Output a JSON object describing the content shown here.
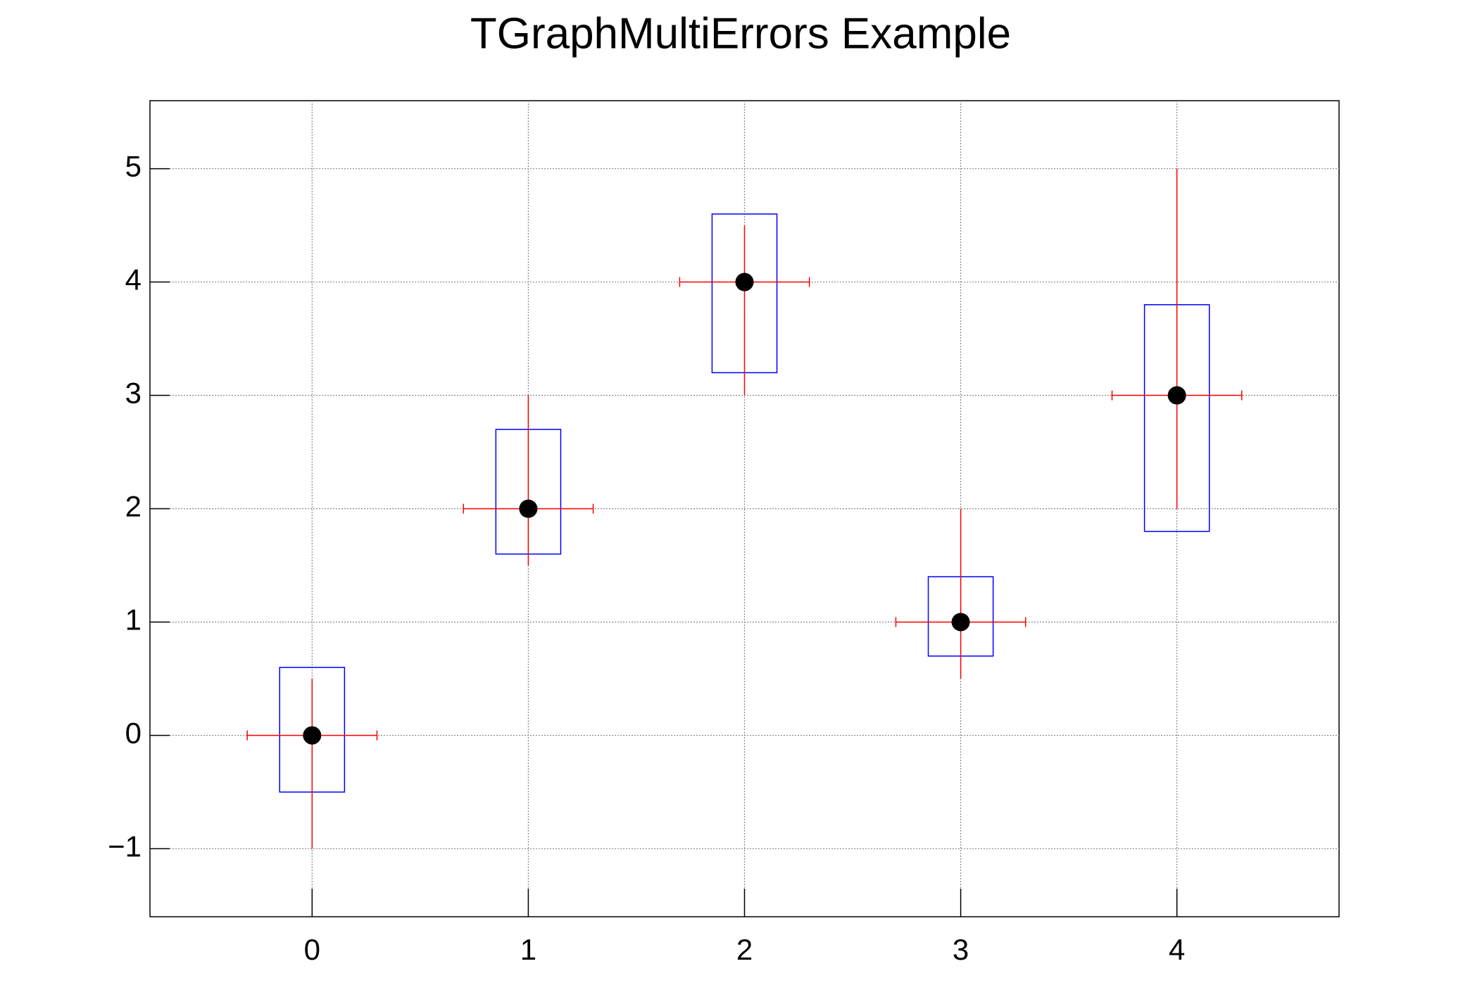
{
  "chart_data": {
    "type": "scatter",
    "title": "TGraphMultiErrors Example",
    "x": [
      0,
      1,
      2,
      3,
      4
    ],
    "values": [
      0,
      2,
      4,
      1,
      3
    ],
    "x_err": [
      0.3,
      0.3,
      0.3,
      0.3,
      0.3
    ],
    "y_err_low": [
      1,
      0.5,
      1,
      0.5,
      1
    ],
    "y_err_high": [
      0.5,
      1,
      0.5,
      1,
      2
    ],
    "box_x_err": [
      0.15,
      0.15,
      0.15,
      0.15,
      0.15
    ],
    "box_y_err_low": [
      0.5,
      0.4,
      0.8,
      0.3,
      1.2
    ],
    "box_y_err_high": [
      0.6,
      0.7,
      0.6,
      0.4,
      0.8
    ],
    "marker_color": "#000000",
    "error_color": "#ff0000",
    "box_color": "#0000ff",
    "xlim": [
      -0.75,
      4.75
    ],
    "ylim": [
      -1.6,
      5.6
    ],
    "xticks": [
      0,
      1,
      2,
      3,
      4
    ],
    "yticks": [
      {
        "value": -1,
        "label": "−1"
      },
      0,
      1,
      2,
      3,
      4,
      5
    ],
    "grid": true
  }
}
